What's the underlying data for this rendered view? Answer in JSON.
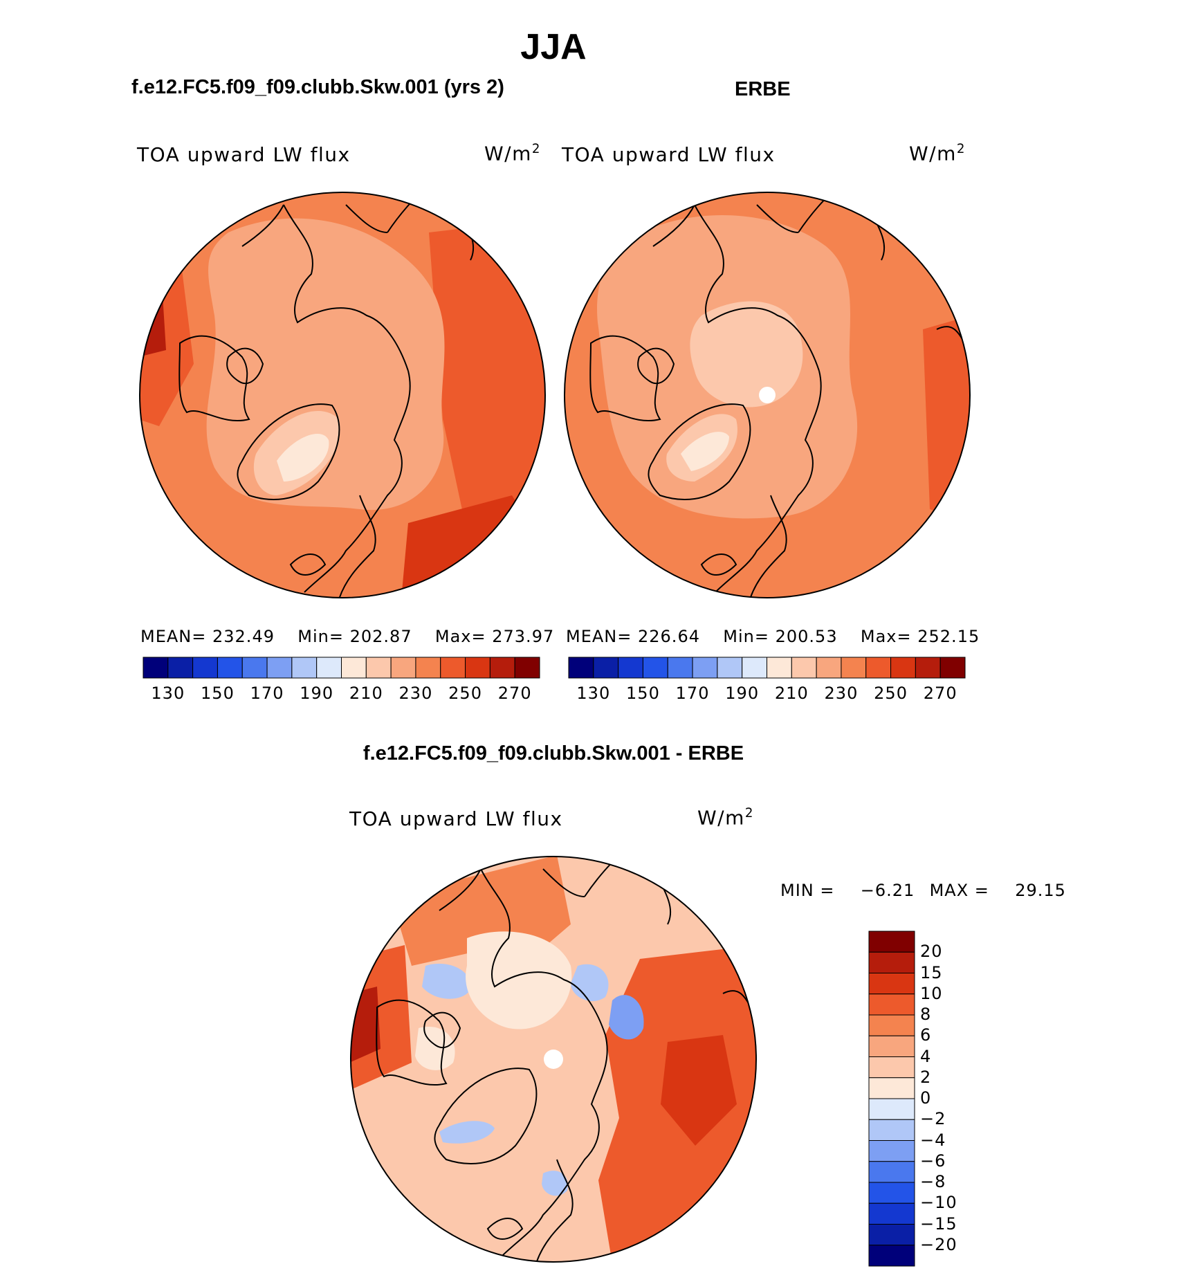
{
  "title": "JJA",
  "variable": "TOA upward LW flux",
  "units_base": "W/m",
  "units_exp": "2",
  "panels": [
    {
      "title": "f.e12.FC5.f09_f09.clubb.Skw.001 (yrs 2)",
      "mean_label": "MEAN=",
      "mean": "232.49",
      "min_label": "Min=",
      "min": "202.87",
      "max_label": "Max=",
      "max": "273.97"
    },
    {
      "title": "ERBE",
      "mean_label": "MEAN=",
      "mean": "226.64",
      "min_label": "Min=",
      "min": "200.53",
      "max_label": "Max=",
      "max": "252.15"
    }
  ],
  "abs_colorbar": {
    "labels": [
      "130",
      "150",
      "170",
      "190",
      "210",
      "230",
      "250",
      "270"
    ],
    "colors": [
      "#00007a",
      "#0a1fa6",
      "#1438d0",
      "#2354e8",
      "#4a78ee",
      "#7d9ff3",
      "#b0c7f7",
      "#dde9fb",
      "#fde8d8",
      "#fcc8ac",
      "#f8a67e",
      "#f4834f",
      "#ed5a2c",
      "#d93612",
      "#b51d0c",
      "#800000"
    ]
  },
  "diff": {
    "title": "f.e12.FC5.f09_f09.clubb.Skw.001 - ERBE",
    "min_label": "MIN =",
    "min": "−6.21",
    "max_label": "MAX =",
    "max": "29.15",
    "colorbar_labels": [
      "20",
      "15",
      "10",
      "8",
      "6",
      "4",
      "2",
      "0",
      "−2",
      "−4",
      "−6",
      "−8",
      "−10",
      "−15",
      "−20"
    ],
    "colorbar_colors": [
      "#800000",
      "#b51d0c",
      "#d93612",
      "#ed5a2c",
      "#f4834f",
      "#f8a67e",
      "#fcc8ac",
      "#fde8d8",
      "#dde9fb",
      "#b0c7f7",
      "#7d9ff3",
      "#4a78ee",
      "#2354e8",
      "#1438d0",
      "#0a1fa6",
      "#00007a"
    ]
  },
  "colors": {
    "land_outline": "#000000",
    "missing": "#ffffff"
  }
}
